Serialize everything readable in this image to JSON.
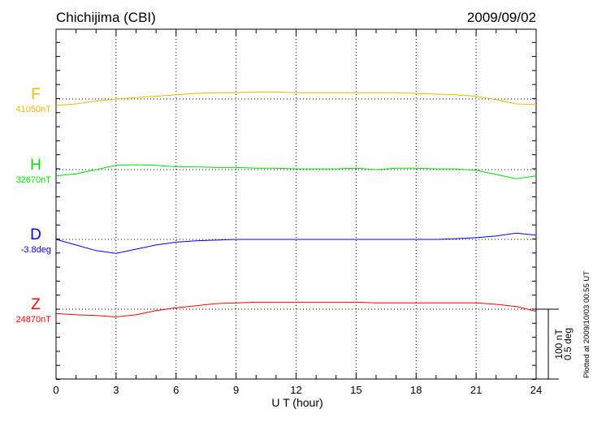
{
  "chart_data": {
    "type": "line",
    "title": "Chichijima (CBI)",
    "date": "2009/09/02",
    "xlabel": "U T (hour)",
    "xlim": [
      0,
      24
    ],
    "xticks": [
      "0",
      "3",
      "6",
      "9",
      "12",
      "15",
      "18",
      "21",
      "24"
    ],
    "grid": true,
    "x": [
      0,
      1,
      2,
      3,
      4,
      5,
      6,
      7,
      8,
      9,
      10,
      11,
      12,
      13,
      14,
      15,
      16,
      17,
      18,
      19,
      20,
      21,
      22,
      23,
      24
    ],
    "series": [
      {
        "name": "F",
        "baseline": "41050nT",
        "unit": "nT",
        "color": "#f5b400",
        "values": [
          -9,
          -7,
          -3,
          0,
          2,
          4,
          6,
          8,
          9,
          9,
          10,
          10,
          9,
          9,
          9,
          9,
          9,
          9,
          8,
          7,
          6,
          4,
          -1,
          -7,
          -8
        ]
      },
      {
        "name": "H",
        "baseline": "32670nT",
        "unit": "nT",
        "color": "#00e000",
        "values": [
          -9,
          -6,
          0,
          6,
          7,
          6,
          4,
          4,
          3,
          3,
          2,
          2,
          1,
          1,
          1,
          2,
          0,
          2,
          2,
          1,
          1,
          -1,
          -7,
          -13,
          -9
        ]
      },
      {
        "name": "D",
        "baseline": "-3.8deg",
        "unit": "deg",
        "color": "#0000ff",
        "values": [
          0,
          -0.04,
          -0.08,
          -0.1,
          -0.07,
          -0.04,
          -0.02,
          -0.01,
          -0.005,
          0,
          0,
          0,
          0,
          0,
          0,
          0,
          0,
          0,
          0,
          0,
          0.005,
          0.012,
          0.025,
          0.045,
          0.03
        ]
      },
      {
        "name": "Z",
        "baseline": "24870nT",
        "unit": "nT",
        "color": "#ff0000",
        "values": [
          -6,
          -8,
          -9,
          -11,
          -8,
          -2,
          2,
          5,
          8,
          9,
          10,
          10,
          10,
          10,
          10,
          10,
          9,
          9,
          9,
          9,
          9,
          9,
          7,
          4,
          -3
        ]
      }
    ],
    "scale_label_nT": "100 nT",
    "scale_label_deg": "0.5 deg",
    "plotted_note": "Plotted at 2009/10/03 00:55 UT"
  }
}
